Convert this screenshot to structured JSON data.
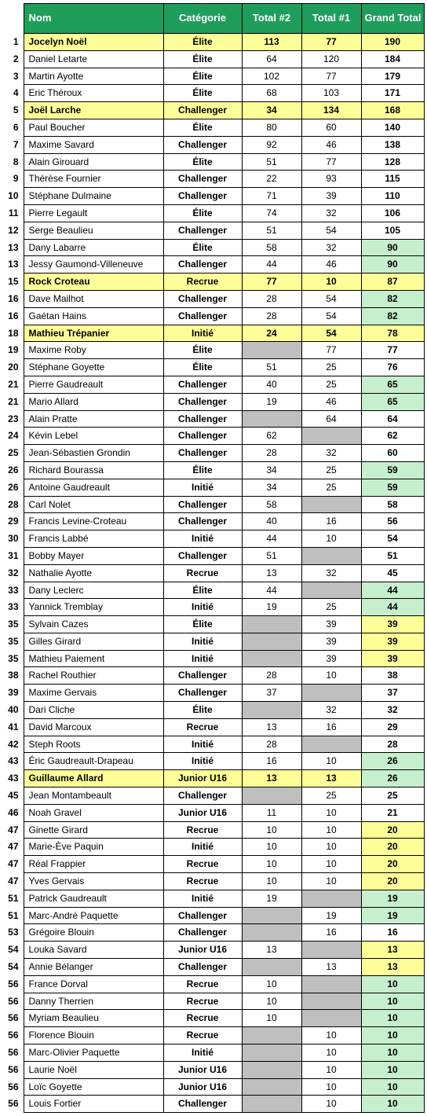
{
  "headers": {
    "rank": "",
    "nom": "Nom",
    "cat": "Catégorie",
    "t2": "Total #2",
    "t1": "Total #1",
    "gt": "Grand Total"
  },
  "colors": {
    "header_bg": "#1e9e5a",
    "header_fg": "#ffffff",
    "row_yellow": "#ffff99",
    "cell_gray": "#bfbfbf",
    "cell_green": "#c6efce",
    "cell_yellow": "#ffff99"
  },
  "rows": [
    {
      "rank": 1,
      "nom": "Jocelyn Noël",
      "cat": "Élite",
      "t2": "113",
      "t1": "77",
      "gt": "190",
      "row_hl": true
    },
    {
      "rank": 2,
      "nom": "Daniel Letarte",
      "cat": "Élite",
      "t2": "64",
      "t1": "120",
      "gt": "184"
    },
    {
      "rank": 3,
      "nom": "Martin Ayotte",
      "cat": "Élite",
      "t2": "102",
      "t1": "77",
      "gt": "179"
    },
    {
      "rank": 4,
      "nom": "Eric Théroux",
      "cat": "Élite",
      "t2": "68",
      "t1": "103",
      "gt": "171"
    },
    {
      "rank": 5,
      "nom": "Joël Larche",
      "cat": "Challenger",
      "t2": "34",
      "t1": "134",
      "gt": "168",
      "row_hl": true
    },
    {
      "rank": 6,
      "nom": "Paul Boucher",
      "cat": "Élite",
      "t2": "80",
      "t1": "60",
      "gt": "140"
    },
    {
      "rank": 7,
      "nom": "Maxime Savard",
      "cat": "Challenger",
      "t2": "92",
      "t1": "46",
      "gt": "138"
    },
    {
      "rank": 8,
      "nom": "Alain Girouard",
      "cat": "Élite",
      "t2": "51",
      "t1": "77",
      "gt": "128"
    },
    {
      "rank": 9,
      "nom": "Thérèse Fournier",
      "cat": "Challenger",
      "t2": "22",
      "t1": "93",
      "gt": "115"
    },
    {
      "rank": 10,
      "nom": "Stéphane Dulmaine",
      "cat": "Challenger",
      "t2": "71",
      "t1": "39",
      "gt": "110"
    },
    {
      "rank": 11,
      "nom": "Pierre Legault",
      "cat": "Élite",
      "t2": "74",
      "t1": "32",
      "gt": "106"
    },
    {
      "rank": 12,
      "nom": "Serge Beaulieu",
      "cat": "Challenger",
      "t2": "51",
      "t1": "54",
      "gt": "105"
    },
    {
      "rank": 13,
      "nom": "Dany Labarre",
      "cat": "Élite",
      "t2": "58",
      "t1": "32",
      "gt": "90",
      "gt_hl": "green"
    },
    {
      "rank": 13,
      "nom": "Jessy Gaumond-Villeneuve",
      "cat": "Challenger",
      "t2": "44",
      "t1": "46",
      "gt": "90",
      "gt_hl": "green"
    },
    {
      "rank": 15,
      "nom": "Rock Croteau",
      "cat": "Recrue",
      "t2": "77",
      "t1": "10",
      "gt": "87",
      "row_hl": true
    },
    {
      "rank": 16,
      "nom": "Dave Mailhot",
      "cat": "Challenger",
      "t2": "28",
      "t1": "54",
      "gt": "82",
      "gt_hl": "green"
    },
    {
      "rank": 16,
      "nom": "Gaétan Hains",
      "cat": "Challenger",
      "t2": "28",
      "t1": "54",
      "gt": "82",
      "gt_hl": "green"
    },
    {
      "rank": 18,
      "nom": "Mathieu Trépanier",
      "cat": "Initié",
      "t2": "24",
      "t1": "54",
      "gt": "78",
      "row_hl": true
    },
    {
      "rank": 19,
      "nom": "Maxime Roby",
      "cat": "Élite",
      "t2": "",
      "t1": "77",
      "gt": "77",
      "t2_hl": "gray"
    },
    {
      "rank": 20,
      "nom": "Stéphane Goyette",
      "cat": "Élite",
      "t2": "51",
      "t1": "25",
      "gt": "76"
    },
    {
      "rank": 21,
      "nom": "Pierre Gaudreault",
      "cat": "Challenger",
      "t2": "40",
      "t1": "25",
      "gt": "65",
      "gt_hl": "green"
    },
    {
      "rank": 21,
      "nom": "Mario Allard",
      "cat": "Challenger",
      "t2": "19",
      "t1": "46",
      "gt": "65",
      "gt_hl": "green"
    },
    {
      "rank": 23,
      "nom": "Alain Pratte",
      "cat": "Challenger",
      "t2": "",
      "t1": "64",
      "gt": "64",
      "t2_hl": "gray"
    },
    {
      "rank": 24,
      "nom": "Kévin Lebel",
      "cat": "Challenger",
      "t2": "62",
      "t1": "",
      "gt": "62",
      "t1_hl": "gray"
    },
    {
      "rank": 25,
      "nom": "Jean-Sébastien Grondin",
      "cat": "Challenger",
      "t2": "28",
      "t1": "32",
      "gt": "60"
    },
    {
      "rank": 26,
      "nom": "Richard Bourassa",
      "cat": "Élite",
      "t2": "34",
      "t1": "25",
      "gt": "59",
      "gt_hl": "green"
    },
    {
      "rank": 26,
      "nom": "Antoine Gaudreault",
      "cat": "Initié",
      "t2": "34",
      "t1": "25",
      "gt": "59",
      "gt_hl": "green"
    },
    {
      "rank": 28,
      "nom": "Carl Nolet",
      "cat": "Challenger",
      "t2": "58",
      "t1": "",
      "gt": "58",
      "t1_hl": "gray"
    },
    {
      "rank": 29,
      "nom": "Francis Levine-Croteau",
      "cat": "Challenger",
      "t2": "40",
      "t1": "16",
      "gt": "56"
    },
    {
      "rank": 30,
      "nom": "Francis Labbé",
      "cat": "Initié",
      "t2": "44",
      "t1": "10",
      "gt": "54"
    },
    {
      "rank": 31,
      "nom": "Bobby Mayer",
      "cat": "Challenger",
      "t2": "51",
      "t1": "",
      "gt": "51",
      "t1_hl": "gray"
    },
    {
      "rank": 32,
      "nom": "Nathalie Ayotte",
      "cat": "Recrue",
      "t2": "13",
      "t1": "32",
      "gt": "45"
    },
    {
      "rank": 33,
      "nom": "Dany Leclerc",
      "cat": "Élite",
      "t2": "44",
      "t1": "",
      "gt": "44",
      "t1_hl": "gray",
      "gt_hl": "green"
    },
    {
      "rank": 33,
      "nom": "Yannick Tremblay",
      "cat": "Initié",
      "t2": "19",
      "t1": "25",
      "gt": "44",
      "gt_hl": "green"
    },
    {
      "rank": 35,
      "nom": "Sylvain Cazes",
      "cat": "Élite",
      "t2": "",
      "t1": "39",
      "gt": "39",
      "t2_hl": "gray",
      "gt_hl": "yellow"
    },
    {
      "rank": 35,
      "nom": "Gilles Girard",
      "cat": "Initié",
      "t2": "",
      "t1": "39",
      "gt": "39",
      "t2_hl": "gray",
      "gt_hl": "yellow"
    },
    {
      "rank": 35,
      "nom": "Mathieu Paiement",
      "cat": "Initié",
      "t2": "",
      "t1": "39",
      "gt": "39",
      "t2_hl": "gray",
      "gt_hl": "yellow"
    },
    {
      "rank": 38,
      "nom": "Rachel Routhier",
      "cat": "Challenger",
      "t2": "28",
      "t1": "10",
      "gt": "38"
    },
    {
      "rank": 39,
      "nom": "Maxime Gervais",
      "cat": "Challenger",
      "t2": "37",
      "t1": "",
      "gt": "37",
      "t1_hl": "gray"
    },
    {
      "rank": 40,
      "nom": "Dari Cliche",
      "cat": "Élite",
      "t2": "",
      "t1": "32",
      "gt": "32",
      "t2_hl": "gray"
    },
    {
      "rank": 41,
      "nom": "David Marcoux",
      "cat": "Recrue",
      "t2": "13",
      "t1": "16",
      "gt": "29"
    },
    {
      "rank": 42,
      "nom": "Steph Roots",
      "cat": "Initié",
      "t2": "28",
      "t1": "",
      "gt": "28",
      "t1_hl": "gray"
    },
    {
      "rank": 43,
      "nom": "Éric Gaudreault-Drapeau",
      "cat": "Initié",
      "t2": "16",
      "t1": "10",
      "gt": "26",
      "gt_hl": "green"
    },
    {
      "rank": 43,
      "nom": "Guillaume Allard",
      "cat": "Junior U16",
      "t2": "13",
      "t1": "13",
      "gt": "26",
      "row_hl": true,
      "gt_hl": "green"
    },
    {
      "rank": 45,
      "nom": "Jean Montambeault",
      "cat": "Challenger",
      "t2": "",
      "t1": "25",
      "gt": "25",
      "t2_hl": "gray"
    },
    {
      "rank": 46,
      "nom": "Noah Gravel",
      "cat": "Junior U16",
      "t2": "11",
      "t1": "10",
      "gt": "21"
    },
    {
      "rank": 47,
      "nom": "Ginette Girard",
      "cat": "Recrue",
      "t2": "10",
      "t1": "10",
      "gt": "20",
      "gt_hl": "yellow"
    },
    {
      "rank": 47,
      "nom": "Marie-Ève Paquin",
      "cat": "Initié",
      "t2": "10",
      "t1": "10",
      "gt": "20",
      "gt_hl": "yellow"
    },
    {
      "rank": 47,
      "nom": "Réal Frappier",
      "cat": "Recrue",
      "t2": "10",
      "t1": "10",
      "gt": "20",
      "gt_hl": "yellow"
    },
    {
      "rank": 47,
      "nom": "Yves Gervais",
      "cat": "Recrue",
      "t2": "10",
      "t1": "10",
      "gt": "20",
      "gt_hl": "yellow"
    },
    {
      "rank": 51,
      "nom": "Patrick Gaudreault",
      "cat": "Initié",
      "t2": "19",
      "t1": "",
      "gt": "19",
      "t1_hl": "gray",
      "gt_hl": "green"
    },
    {
      "rank": 51,
      "nom": "Marc-André Paquette",
      "cat": "Challenger",
      "t2": "",
      "t1": "19",
      "gt": "19",
      "t2_hl": "gray",
      "gt_hl": "green"
    },
    {
      "rank": 53,
      "nom": "Grégoire Blouin",
      "cat": "Challenger",
      "t2": "",
      "t1": "16",
      "gt": "16",
      "t2_hl": "gray"
    },
    {
      "rank": 54,
      "nom": "Louka Savard",
      "cat": "Junior U16",
      "t2": "13",
      "t1": "",
      "gt": "13",
      "t1_hl": "gray",
      "gt_hl": "yellow"
    },
    {
      "rank": 54,
      "nom": "Annie Bélanger",
      "cat": "Challenger",
      "t2": "",
      "t1": "13",
      "gt": "13",
      "t2_hl": "gray",
      "gt_hl": "yellow"
    },
    {
      "rank": 56,
      "nom": "France Dorval",
      "cat": "Recrue",
      "t2": "10",
      "t1": "",
      "gt": "10",
      "t1_hl": "gray",
      "gt_hl": "green"
    },
    {
      "rank": 56,
      "nom": "Danny Therrien",
      "cat": "Recrue",
      "t2": "10",
      "t1": "",
      "gt": "10",
      "t1_hl": "gray",
      "gt_hl": "green"
    },
    {
      "rank": 56,
      "nom": "Myriam Beaulieu",
      "cat": "Recrue",
      "t2": "10",
      "t1": "",
      "gt": "10",
      "t1_hl": "gray",
      "gt_hl": "green"
    },
    {
      "rank": 56,
      "nom": "Florence Blouin",
      "cat": "Recrue",
      "t2": "",
      "t1": "10",
      "gt": "10",
      "t2_hl": "gray",
      "gt_hl": "green"
    },
    {
      "rank": 56,
      "nom": "Marc-Olivier Paquette",
      "cat": "Initié",
      "t2": "",
      "t1": "10",
      "gt": "10",
      "t2_hl": "gray",
      "gt_hl": "green"
    },
    {
      "rank": 56,
      "nom": "Laurie Noël",
      "cat": "Junior U16",
      "t2": "",
      "t1": "10",
      "gt": "10",
      "t2_hl": "gray",
      "gt_hl": "green"
    },
    {
      "rank": 56,
      "nom": "Loïc Goyette",
      "cat": "Junior U16",
      "t2": "",
      "t1": "10",
      "gt": "10",
      "t2_hl": "gray",
      "gt_hl": "green"
    },
    {
      "rank": 56,
      "nom": "Louis Fortier",
      "cat": "Challenger",
      "t2": "",
      "t1": "10",
      "gt": "10",
      "t2_hl": "gray",
      "gt_hl": "green"
    }
  ]
}
